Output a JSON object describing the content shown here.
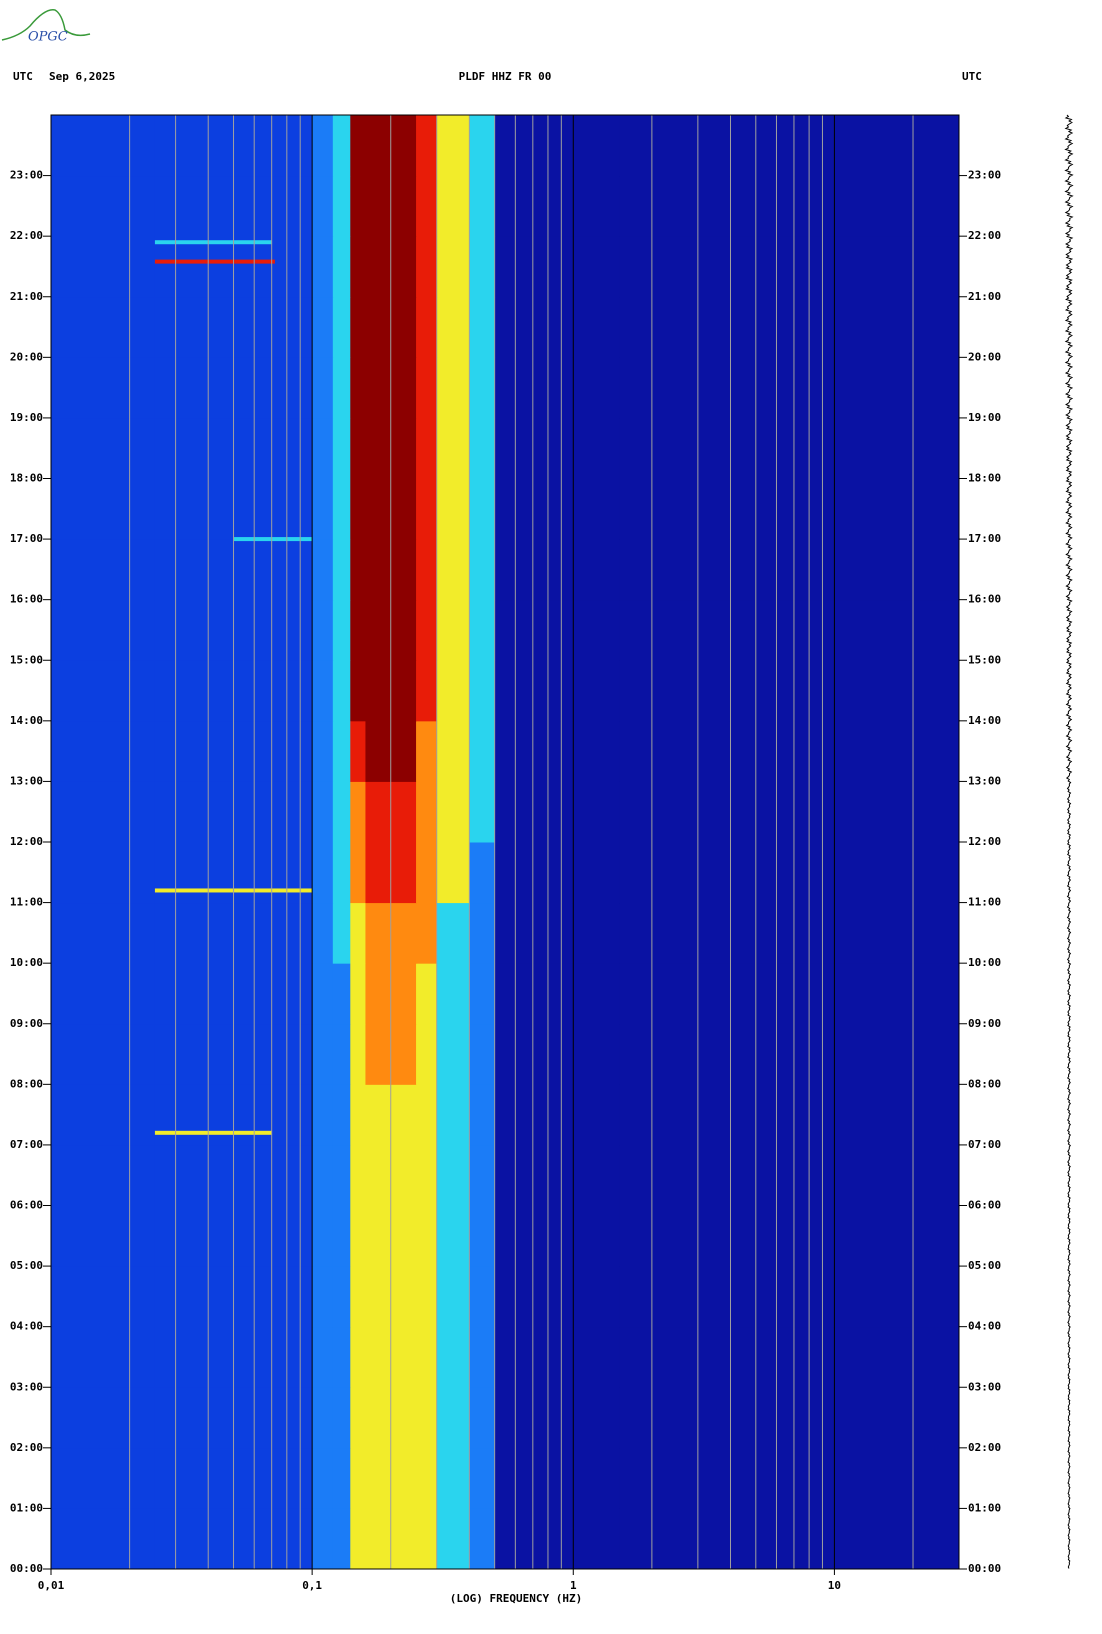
{
  "logo": "OPGC",
  "header": {
    "left_tz": "UTC",
    "date": "Sep 6,2025",
    "station": "PLDF HHZ FR 00",
    "right_tz": "UTC"
  },
  "chart_data": {
    "type": "spectrogram",
    "xlabel": "(LOG) FREQUENCY (HZ)",
    "xscale": "log",
    "xlim": [
      0.01,
      30
    ],
    "ylim": [
      0,
      24
    ],
    "xticks": [
      {
        "value": 0.01,
        "label": "0,01"
      },
      {
        "value": 0.1,
        "label": "0,1"
      },
      1,
      10
    ],
    "xminor": [
      0.02,
      0.03,
      0.04,
      0.05,
      0.06,
      0.07,
      0.08,
      0.09,
      0.2,
      0.3,
      0.4,
      0.5,
      0.6,
      0.7,
      0.8,
      0.9,
      2,
      3,
      4,
      5,
      6,
      7,
      8,
      9,
      20
    ],
    "yticks": [
      {
        "value": 0,
        "label": "00:00"
      },
      {
        "value": 1,
        "label": "01:00"
      },
      {
        "value": 2,
        "label": "02:00"
      },
      {
        "value": 3,
        "label": "03:00"
      },
      {
        "value": 4,
        "label": "04:00"
      },
      {
        "value": 5,
        "label": "05:00"
      },
      {
        "value": 6,
        "label": "06:00"
      },
      {
        "value": 7,
        "label": "07:00"
      },
      {
        "value": 8,
        "label": "08:00"
      },
      {
        "value": 9,
        "label": "09:00"
      },
      {
        "value": 10,
        "label": "10:00"
      },
      {
        "value": 11,
        "label": "11:00"
      },
      {
        "value": 12,
        "label": "12:00"
      },
      {
        "value": 13,
        "label": "13:00"
      },
      {
        "value": 14,
        "label": "14:00"
      },
      {
        "value": 15,
        "label": "15:00"
      },
      {
        "value": 16,
        "label": "16:00"
      },
      {
        "value": 17,
        "label": "17:00"
      },
      {
        "value": 18,
        "label": "18:00"
      },
      {
        "value": 19,
        "label": "19:00"
      },
      {
        "value": 20,
        "label": "20:00"
      },
      {
        "value": 21,
        "label": "21:00"
      },
      {
        "value": 22,
        "label": "22:00"
      },
      {
        "value": 23,
        "label": "23:00"
      }
    ],
    "colors": [
      "#0a12a3",
      "#0c3fe0",
      "#1b7cf7",
      "#2ad4ee",
      "#f2ec2a",
      "#ff8a10",
      "#e81c08",
      "#8c0000"
    ],
    "freq_edges": [
      0.01,
      0.025,
      0.07,
      0.1,
      0.12,
      0.14,
      0.16,
      0.25,
      0.3,
      0.4,
      0.5,
      1.5,
      30
    ],
    "hour_edges": [
      0,
      1,
      2,
      3,
      4,
      5,
      6,
      7,
      8,
      9,
      10,
      11,
      12,
      13,
      14,
      15,
      16,
      17,
      18,
      19,
      20,
      21,
      22,
      23,
      24
    ],
    "levels": [
      [
        1,
        1,
        1,
        2,
        2,
        4,
        4,
        4,
        3,
        2,
        0,
        0
      ],
      [
        1,
        1,
        1,
        2,
        2,
        4,
        4,
        4,
        3,
        2,
        0,
        0
      ],
      [
        1,
        1,
        1,
        2,
        2,
        4,
        4,
        4,
        3,
        2,
        0,
        0
      ],
      [
        1,
        1,
        1,
        2,
        2,
        4,
        4,
        4,
        3,
        2,
        0,
        0
      ],
      [
        1,
        1,
        1,
        2,
        2,
        4,
        4,
        4,
        3,
        2,
        0,
        0
      ],
      [
        1,
        1,
        1,
        2,
        2,
        4,
        4,
        4,
        3,
        2,
        0,
        0
      ],
      [
        1,
        1,
        1,
        2,
        2,
        4,
        4,
        4,
        3,
        2,
        0,
        0
      ],
      [
        1,
        1,
        1,
        2,
        2,
        4,
        4,
        4,
        3,
        2,
        0,
        0
      ],
      [
        1,
        1,
        1,
        2,
        2,
        4,
        5,
        4,
        3,
        2,
        0,
        0
      ],
      [
        1,
        1,
        1,
        2,
        2,
        4,
        5,
        4,
        3,
        2,
        0,
        0
      ],
      [
        1,
        1,
        1,
        2,
        3,
        4,
        5,
        5,
        3,
        2,
        0,
        0
      ],
      [
        1,
        1,
        1,
        2,
        3,
        5,
        6,
        5,
        4,
        2,
        0,
        0
      ],
      [
        1,
        1,
        1,
        2,
        3,
        5,
        6,
        5,
        4,
        3,
        0,
        0
      ],
      [
        1,
        1,
        1,
        2,
        3,
        6,
        7,
        5,
        4,
        3,
        0,
        0
      ],
      [
        1,
        1,
        1,
        2,
        3,
        7,
        7,
        6,
        4,
        3,
        0,
        0
      ],
      [
        1,
        1,
        1,
        2,
        3,
        7,
        7,
        6,
        4,
        3,
        0,
        0
      ],
      [
        1,
        1,
        1,
        2,
        3,
        7,
        7,
        6,
        4,
        3,
        0,
        0
      ],
      [
        1,
        1,
        1,
        2,
        3,
        7,
        7,
        6,
        4,
        3,
        0,
        0
      ],
      [
        1,
        1,
        1,
        2,
        3,
        7,
        7,
        6,
        4,
        3,
        0,
        0
      ],
      [
        1,
        1,
        1,
        2,
        3,
        7,
        7,
        6,
        4,
        3,
        0,
        0
      ],
      [
        1,
        1,
        1,
        2,
        3,
        7,
        7,
        6,
        4,
        3,
        0,
        0
      ],
      [
        1,
        1,
        1,
        2,
        3,
        7,
        7,
        6,
        4,
        3,
        0,
        0
      ],
      [
        1,
        1,
        1,
        2,
        3,
        7,
        7,
        6,
        4,
        3,
        0,
        0
      ],
      [
        1,
        1,
        1,
        2,
        3,
        7,
        7,
        6,
        4,
        3,
        0,
        0
      ]
    ],
    "events": [
      {
        "time": 21.58,
        "fmin": 0.025,
        "fmax": 0.072,
        "level": 6
      },
      {
        "time": 21.9,
        "fmin": 0.025,
        "fmax": 0.07,
        "level": 3
      },
      {
        "time": 17.0,
        "fmin": 0.05,
        "fmax": 0.1,
        "level": 3
      },
      {
        "time": 11.2,
        "fmin": 0.025,
        "fmax": 0.1,
        "level": 4
      },
      {
        "time": 7.2,
        "fmin": 0.025,
        "fmax": 0.07,
        "level": 4
      }
    ]
  }
}
